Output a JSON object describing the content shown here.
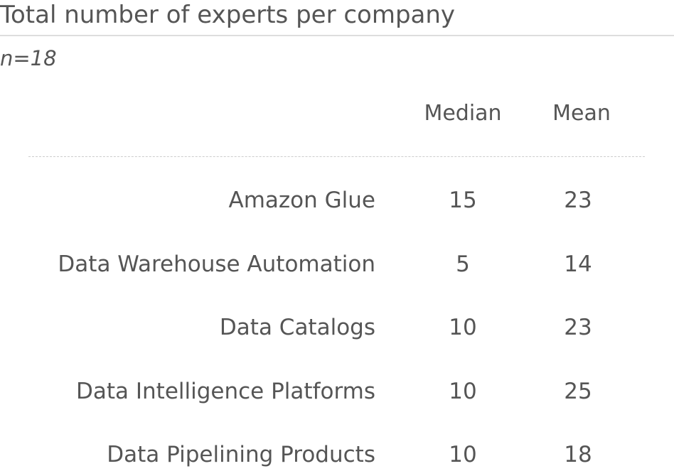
{
  "header": {
    "title": "Total number of experts per company",
    "subtitle": "n=18"
  },
  "table": {
    "columns": [
      "Median",
      "Mean"
    ],
    "rows": [
      [
        "Amazon Glue",
        15,
        23
      ],
      [
        "Data Warehouse Automation",
        5,
        14
      ],
      [
        "Data Catalogs",
        10,
        23
      ],
      [
        "Data Intelligence Platforms",
        10,
        25
      ],
      [
        "Data Pipelining Products",
        10,
        18
      ]
    ]
  }
}
